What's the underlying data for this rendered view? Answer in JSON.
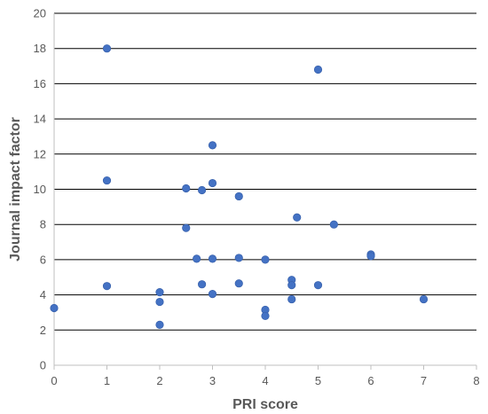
{
  "chart_data": {
    "type": "scatter",
    "title": "",
    "xlabel": "PRI score",
    "ylabel": "Journal impact factor",
    "xlim": [
      0,
      8
    ],
    "ylim": [
      0,
      20
    ],
    "x_ticks": [
      0,
      1,
      2,
      3,
      4,
      5,
      6,
      7,
      8
    ],
    "y_ticks": [
      0,
      2,
      4,
      6,
      8,
      10,
      12,
      14,
      16,
      18,
      20
    ],
    "grid": "horizontal",
    "marker_color": "#4472C4",
    "points": [
      {
        "x": 0,
        "y": 3.25
      },
      {
        "x": 1,
        "y": 18.0
      },
      {
        "x": 1,
        "y": 10.5
      },
      {
        "x": 1,
        "y": 4.5
      },
      {
        "x": 2,
        "y": 4.15
      },
      {
        "x": 2,
        "y": 3.6
      },
      {
        "x": 2,
        "y": 2.3
      },
      {
        "x": 2.5,
        "y": 10.05
      },
      {
        "x": 2.5,
        "y": 7.8
      },
      {
        "x": 2.7,
        "y": 6.05
      },
      {
        "x": 2.8,
        "y": 9.95
      },
      {
        "x": 2.8,
        "y": 4.6
      },
      {
        "x": 3,
        "y": 12.5
      },
      {
        "x": 3,
        "y": 10.35
      },
      {
        "x": 3,
        "y": 6.05
      },
      {
        "x": 3,
        "y": 4.05
      },
      {
        "x": 3.5,
        "y": 9.6
      },
      {
        "x": 3.5,
        "y": 6.1
      },
      {
        "x": 3.5,
        "y": 4.65
      },
      {
        "x": 4,
        "y": 6.0
      },
      {
        "x": 4,
        "y": 3.15
      },
      {
        "x": 4,
        "y": 2.8
      },
      {
        "x": 4.5,
        "y": 4.85
      },
      {
        "x": 4.5,
        "y": 4.55
      },
      {
        "x": 4.5,
        "y": 3.75
      },
      {
        "x": 4.6,
        "y": 8.4
      },
      {
        "x": 5,
        "y": 16.8
      },
      {
        "x": 5,
        "y": 4.55
      },
      {
        "x": 5.3,
        "y": 8.0
      },
      {
        "x": 6,
        "y": 6.3
      },
      {
        "x": 6,
        "y": 6.2
      },
      {
        "x": 7,
        "y": 3.75
      }
    ]
  }
}
